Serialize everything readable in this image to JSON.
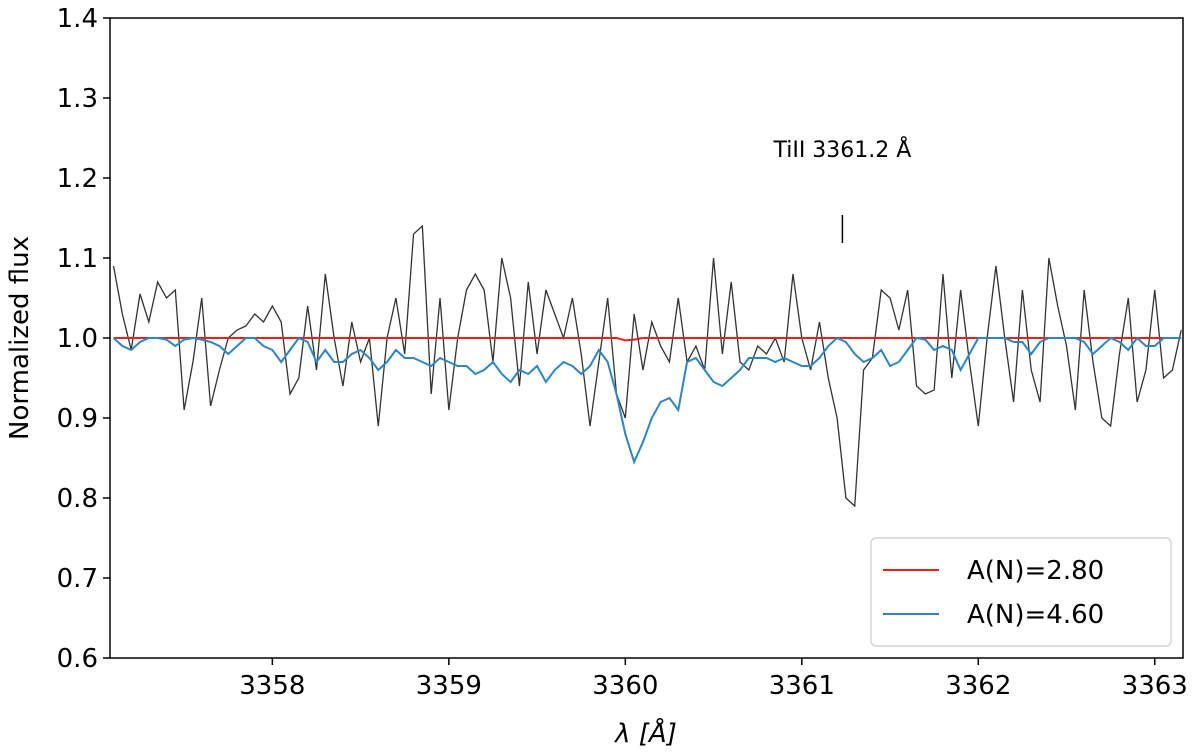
{
  "chart_data": {
    "type": "line",
    "xlabel": "λ [Å]",
    "ylabel": "Normalized flux",
    "xlim": [
      3357.08,
      3363.16
    ],
    "ylim": [
      0.6,
      1.4
    ],
    "xticks": [
      3358,
      3359,
      3360,
      3361,
      3362,
      3363
    ],
    "yticks": [
      0.6,
      0.7,
      0.8,
      0.9,
      {
        "value": 1.0,
        "label": "1.0"
      },
      1.1,
      1.2,
      1.3,
      1.4
    ],
    "legend": "lower right",
    "annotations": [
      {
        "text": "TiII 3361.2 Å",
        "x": 3361.23
      }
    ],
    "x": [
      3357.1,
      3357.15,
      3357.2,
      3357.25,
      3357.3,
      3357.35,
      3357.4,
      3357.45,
      3357.5,
      3357.55,
      3357.6,
      3357.65,
      3357.7,
      3357.75,
      3357.8,
      3357.85,
      3357.9,
      3357.95,
      3358.0,
      3358.05,
      3358.1,
      3358.15,
      3358.2,
      3358.25,
      3358.3,
      3358.35,
      3358.4,
      3358.45,
      3358.5,
      3358.55,
      3358.6,
      3358.65,
      3358.7,
      3358.75,
      3358.8,
      3358.85,
      3358.9,
      3358.95,
      3359.0,
      3359.05,
      3359.1,
      3359.15,
      3359.2,
      3359.25,
      3359.3,
      3359.35,
      3359.4,
      3359.45,
      3359.5,
      3359.55,
      3359.6,
      3359.65,
      3359.7,
      3359.75,
      3359.8,
      3359.85,
      3359.9,
      3359.95,
      3360.0,
      3360.05,
      3360.1,
      3360.15,
      3360.2,
      3360.25,
      3360.3,
      3360.35,
      3360.4,
      3360.45,
      3360.5,
      3360.55,
      3360.6,
      3360.65,
      3360.7,
      3360.75,
      3360.8,
      3360.85,
      3360.9,
      3360.95,
      3361.0,
      3361.05,
      3361.1,
      3361.15,
      3361.2,
      3361.25,
      3361.3,
      3361.35,
      3361.4,
      3361.45,
      3361.5,
      3361.55,
      3361.6,
      3361.65,
      3361.7,
      3361.75,
      3361.8,
      3361.85,
      3361.9,
      3361.95,
      3362.0,
      3362.05,
      3362.1,
      3362.15,
      3362.2,
      3362.25,
      3362.3,
      3362.35,
      3362.4,
      3362.45,
      3362.5,
      3362.55,
      3362.6,
      3362.65,
      3362.7,
      3362.75,
      3362.8,
      3362.85,
      3362.9,
      3362.95,
      3363.0,
      3363.05,
      3363.1,
      3363.15
    ],
    "series": [
      {
        "color": "#333333",
        "values": [
          1.09,
          1.03,
          0.985,
          1.055,
          1.02,
          1.07,
          1.05,
          1.06,
          0.91,
          0.97,
          1.05,
          0.915,
          0.96,
          1.0,
          1.01,
          1.015,
          1.03,
          1.02,
          1.04,
          1.02,
          0.93,
          0.95,
          1.04,
          0.96,
          1.08,
          1.0,
          0.94,
          1.02,
          0.97,
          1.0,
          0.89,
          1.0,
          1.05,
          0.98,
          1.13,
          1.14,
          0.93,
          1.05,
          0.91,
          1.0,
          1.06,
          1.08,
          1.06,
          0.97,
          1.1,
          1.05,
          0.94,
          1.07,
          0.98,
          1.06,
          1.03,
          1.0,
          1.05,
          0.98,
          0.89,
          0.97,
          1.05,
          0.93,
          0.9,
          1.03,
          0.96,
          1.02,
          0.99,
          0.97,
          1.05,
          0.97,
          0.99,
          0.96,
          1.1,
          0.98,
          1.07,
          0.97,
          0.96,
          0.99,
          0.98,
          1.0,
          0.97,
          1.08,
          1.0,
          0.96,
          1.02,
          0.95,
          0.9,
          0.8,
          0.79,
          0.96,
          0.975,
          1.06,
          1.05,
          1.01,
          1.06,
          0.94,
          0.93,
          0.935,
          1.08,
          0.95,
          1.06,
          0.97,
          0.89,
          1.0,
          1.09,
          1.0,
          0.92,
          1.06,
          0.96,
          0.92,
          1.1,
          1.04,
          0.99,
          0.91,
          1.06,
          0.97,
          0.9,
          0.89,
          0.98,
          1.05,
          0.92,
          0.96,
          1.06,
          0.95,
          0.96,
          1.01
        ]
      },
      {
        "name": "A(N)=2.80",
        "color": "#e8211c",
        "values": [
          1.0,
          1.0,
          1.0,
          1.0,
          1.0,
          1.0,
          1.0,
          1.0,
          1.0,
          1.0,
          1.0,
          1.0,
          1.0,
          1.0,
          1.0,
          1.0,
          1.0,
          1.0,
          1.0,
          1.0,
          1.0,
          1.0,
          1.0,
          1.0,
          1.0,
          1.0,
          1.0,
          1.0,
          1.0,
          1.0,
          1.0,
          1.0,
          1.0,
          1.0,
          1.0,
          1.0,
          1.0,
          1.0,
          1.0,
          1.0,
          1.0,
          1.0,
          1.0,
          1.0,
          1.0,
          1.0,
          1.0,
          1.0,
          1.0,
          1.0,
          1.0,
          1.0,
          1.0,
          1.0,
          1.0,
          1.0,
          1.0,
          1.0,
          0.997,
          0.998,
          1.0,
          1.0,
          1.0,
          1.0,
          1.0,
          1.0,
          1.0,
          1.0,
          1.0,
          1.0,
          1.0,
          1.0,
          1.0,
          1.0,
          1.0,
          1.0,
          1.0,
          1.0,
          1.0,
          1.0,
          1.0,
          1.0,
          1.0,
          1.0,
          1.0,
          1.0,
          1.0,
          1.0,
          1.0,
          1.0,
          1.0,
          1.0,
          1.0,
          1.0,
          1.0,
          1.0,
          1.0,
          1.0,
          1.0,
          1.0,
          1.0,
          1.0,
          1.0,
          1.0,
          1.0,
          1.0,
          1.0,
          1.0,
          1.0,
          1.0,
          1.0,
          1.0,
          1.0,
          1.0,
          1.0,
          1.0,
          1.0,
          1.0,
          1.0,
          1.0,
          1.0,
          1.0
        ]
      },
      {
        "name": "A(N)=4.60",
        "color": "#2e86c1",
        "values": [
          1.0,
          0.99,
          0.985,
          0.995,
          1.0,
          1.0,
          0.998,
          0.99,
          0.998,
          1.0,
          0.998,
          0.995,
          0.99,
          0.98,
          0.99,
          1.0,
          1.0,
          0.99,
          0.985,
          0.97,
          0.985,
          1.0,
          0.995,
          0.97,
          0.985,
          0.97,
          0.97,
          0.98,
          0.985,
          0.975,
          0.96,
          0.97,
          0.985,
          0.975,
          0.975,
          0.97,
          0.965,
          0.975,
          0.97,
          0.965,
          0.965,
          0.955,
          0.96,
          0.97,
          0.955,
          0.945,
          0.96,
          0.955,
          0.965,
          0.945,
          0.96,
          0.97,
          0.965,
          0.955,
          0.965,
          0.985,
          0.97,
          0.93,
          0.88,
          0.845,
          0.87,
          0.9,
          0.92,
          0.925,
          0.91,
          0.97,
          0.975,
          0.96,
          0.945,
          0.94,
          0.95,
          0.96,
          0.975,
          0.975,
          0.975,
          0.97,
          0.975,
          0.97,
          0.965,
          0.965,
          0.975,
          0.99,
          1.0,
          0.995,
          0.98,
          0.97,
          0.975,
          0.985,
          0.965,
          0.97,
          0.985,
          1.0,
          0.998,
          0.985,
          0.99,
          0.985,
          0.96,
          0.98,
          1.0,
          1.0,
          1.0,
          1.0,
          0.995,
          0.995,
          0.98,
          0.995,
          1.0,
          1.0,
          1.0,
          1.0,
          0.995,
          0.98,
          0.99,
          1.0,
          0.995,
          0.985,
          1.0,
          0.99,
          0.99,
          1.0,
          1.0,
          1.0
        ]
      }
    ]
  }
}
